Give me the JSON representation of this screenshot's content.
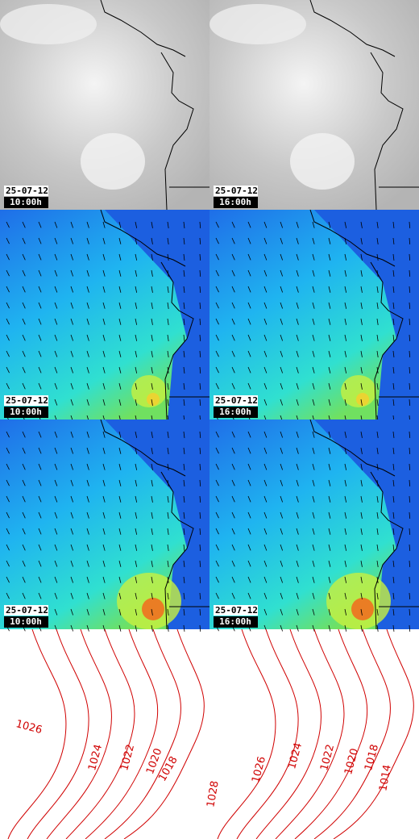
{
  "panels": [
    {
      "date": "25-07-12",
      "time": "10:00h"
    },
    {
      "date": "25-07-12",
      "time": "16:00h"
    },
    {
      "date": "25-07-12",
      "time": "10:00h"
    },
    {
      "date": "25-07-12",
      "time": "16:00h"
    },
    {
      "date": "25-07-12",
      "time": "10:00h"
    },
    {
      "date": "25-07-12",
      "time": "16:00h"
    }
  ],
  "isobars": {
    "left": [
      "1026",
      "1024",
      "1022",
      "1020",
      "1018"
    ],
    "right": [
      "1028",
      "1026",
      "1024",
      "1022",
      "1020",
      "1018",
      "1014"
    ]
  }
}
